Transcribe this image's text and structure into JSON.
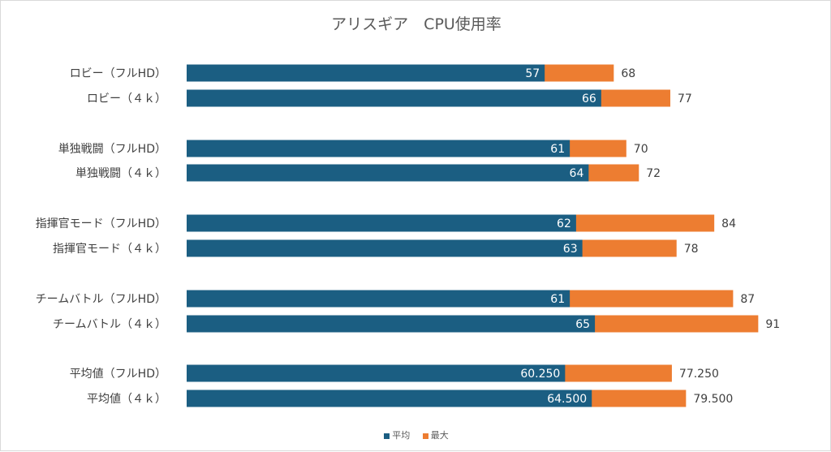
{
  "chart_data": {
    "type": "bar",
    "orientation": "horizontal",
    "stacked_display": "overlay: average bar drawn over maximum bar",
    "title": "アリスギア　CPU使用率",
    "categories": [
      "ロビー（フルHD）",
      "ロビー（４ｋ）",
      "単独戦闘（フルHD）",
      "単独戦闘（４ｋ）",
      "指揮官モード（フルHD）",
      "指揮官モード（４ｋ）",
      "チームバトル（フルHD）",
      "チームバトル（４ｋ）",
      "平均値（フルHD）",
      "平均値（４ｋ）"
    ],
    "series": [
      {
        "name": "平均",
        "color": "#1b5e82",
        "values": [
          57,
          66,
          61,
          64,
          62,
          63,
          61,
          65,
          60.25,
          64.5
        ],
        "labels": [
          "57",
          "66",
          "61",
          "64",
          "62",
          "63",
          "61",
          "65",
          "60.250",
          "64.500"
        ]
      },
      {
        "name": "最大",
        "color": "#ed7d31",
        "values": [
          68,
          77,
          70,
          72,
          84,
          78,
          87,
          91,
          77.25,
          79.5
        ],
        "labels": [
          "68",
          "77",
          "70",
          "72",
          "84",
          "78",
          "87",
          "91",
          "77.250",
          "79.500"
        ]
      }
    ],
    "xlim": [
      0,
      100
    ],
    "grid": false,
    "legend": "bottom"
  }
}
